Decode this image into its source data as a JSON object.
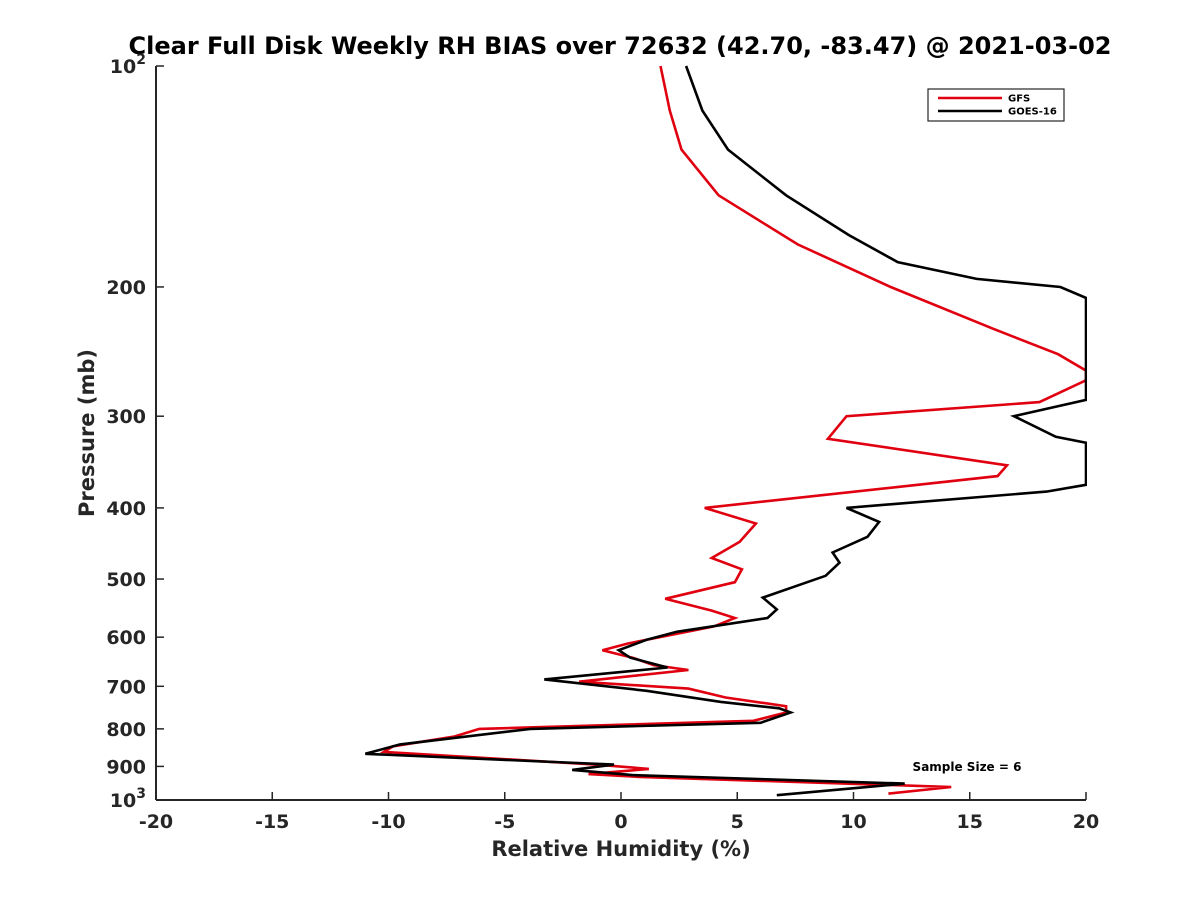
{
  "chart_data": {
    "type": "line",
    "title": "Clear Full Disk Weekly RH BIAS over 72632 (42.70, -83.47) @ 2021-03-02",
    "xlabel": "Relative Humidity (%)",
    "ylabel": "Pressure (mb)",
    "xlim": [
      -20,
      20
    ],
    "ylim": [
      100,
      1000
    ],
    "y_scale": "log",
    "y_reversed": true,
    "grid": false,
    "legend_position": "top-right",
    "x_ticks": [
      "-20",
      "-15",
      "-10",
      "-5",
      "0",
      "5",
      "10",
      "15",
      "20"
    ],
    "y_ticks": [
      {
        "value": 100,
        "base": "10",
        "exp": "2"
      },
      {
        "value": 200,
        "label": "200"
      },
      {
        "value": 300,
        "label": "300"
      },
      {
        "value": 400,
        "label": "400"
      },
      {
        "value": 500,
        "label": "500"
      },
      {
        "value": 600,
        "label": "600"
      },
      {
        "value": 700,
        "label": "700"
      },
      {
        "value": 800,
        "label": "800"
      },
      {
        "value": 900,
        "label": "900"
      },
      {
        "value": 1000,
        "base": "10",
        "exp": "3"
      }
    ],
    "annotation": "Sample Size = 6",
    "series": [
      {
        "name": "GFS",
        "color": "#e0000f",
        "points": [
          [
            1.7,
            100
          ],
          [
            2.1,
            115
          ],
          [
            2.6,
            130
          ],
          [
            4.2,
            150
          ],
          [
            7.6,
            175
          ],
          [
            11.6,
            200
          ],
          [
            16.0,
            228
          ],
          [
            18.8,
            247
          ],
          [
            20,
            260
          ],
          [
            20.5,
            268
          ],
          [
            18.0,
            287
          ],
          [
            9.7,
            300
          ],
          [
            8.9,
            322
          ],
          [
            16.6,
            350
          ],
          [
            16.2,
            362
          ],
          [
            3.6,
            400
          ],
          [
            5.8,
            420
          ],
          [
            5.1,
            445
          ],
          [
            3.9,
            468
          ],
          [
            5.2,
            485
          ],
          [
            4.9,
            505
          ],
          [
            1.9,
            532
          ],
          [
            3.9,
            552
          ],
          [
            4.9,
            565
          ],
          [
            4.0,
            580
          ],
          [
            0.3,
            612
          ],
          [
            -0.8,
            625
          ],
          [
            0.5,
            640
          ],
          [
            1.4,
            655
          ],
          [
            2.9,
            665
          ],
          [
            -1.8,
            690
          ],
          [
            2.9,
            705
          ],
          [
            4.5,
            725
          ],
          [
            7.1,
            745
          ],
          [
            7.1,
            760
          ],
          [
            5.7,
            780
          ],
          [
            -6.1,
            800
          ],
          [
            -7.2,
            820
          ],
          [
            -9.8,
            845
          ],
          [
            -10.2,
            860
          ],
          [
            -1.1,
            895
          ],
          [
            1.2,
            907
          ],
          [
            -1.4,
            922
          ],
          [
            0.8,
            930
          ],
          [
            14.2,
            960
          ],
          [
            11.5,
            980
          ]
        ]
      },
      {
        "name": "GOES-16",
        "color": "#000000",
        "points": [
          [
            2.8,
            100
          ],
          [
            3.5,
            115
          ],
          [
            4.6,
            130
          ],
          [
            7.1,
            150
          ],
          [
            9.8,
            170
          ],
          [
            11.9,
            185
          ],
          [
            15.3,
            195
          ],
          [
            18.9,
            200
          ],
          [
            20,
            207
          ],
          [
            20.5,
            285
          ],
          [
            16.9,
            300
          ],
          [
            18.7,
            320
          ],
          [
            20,
            326
          ],
          [
            20.5,
            372
          ],
          [
            18.3,
            380
          ],
          [
            9.7,
            400
          ],
          [
            11.1,
            418
          ],
          [
            10.6,
            438
          ],
          [
            9.1,
            460
          ],
          [
            9.4,
            475
          ],
          [
            8.8,
            495
          ],
          [
            6.1,
            530
          ],
          [
            6.7,
            550
          ],
          [
            6.3,
            565
          ],
          [
            2.4,
            590
          ],
          [
            1.1,
            605
          ],
          [
            -0.1,
            625
          ],
          [
            0.4,
            640
          ],
          [
            2.0,
            660
          ],
          [
            -3.3,
            685
          ],
          [
            1.1,
            710
          ],
          [
            4.3,
            735
          ],
          [
            6.8,
            750
          ],
          [
            7.3,
            760
          ],
          [
            6.0,
            785
          ],
          [
            -3.9,
            800
          ],
          [
            -9.5,
            840
          ],
          [
            -11.0,
            865
          ],
          [
            -0.3,
            895
          ],
          [
            -2.1,
            910
          ],
          [
            0.5,
            925
          ],
          [
            12.2,
            950
          ],
          [
            6.7,
            985
          ]
        ]
      }
    ]
  }
}
